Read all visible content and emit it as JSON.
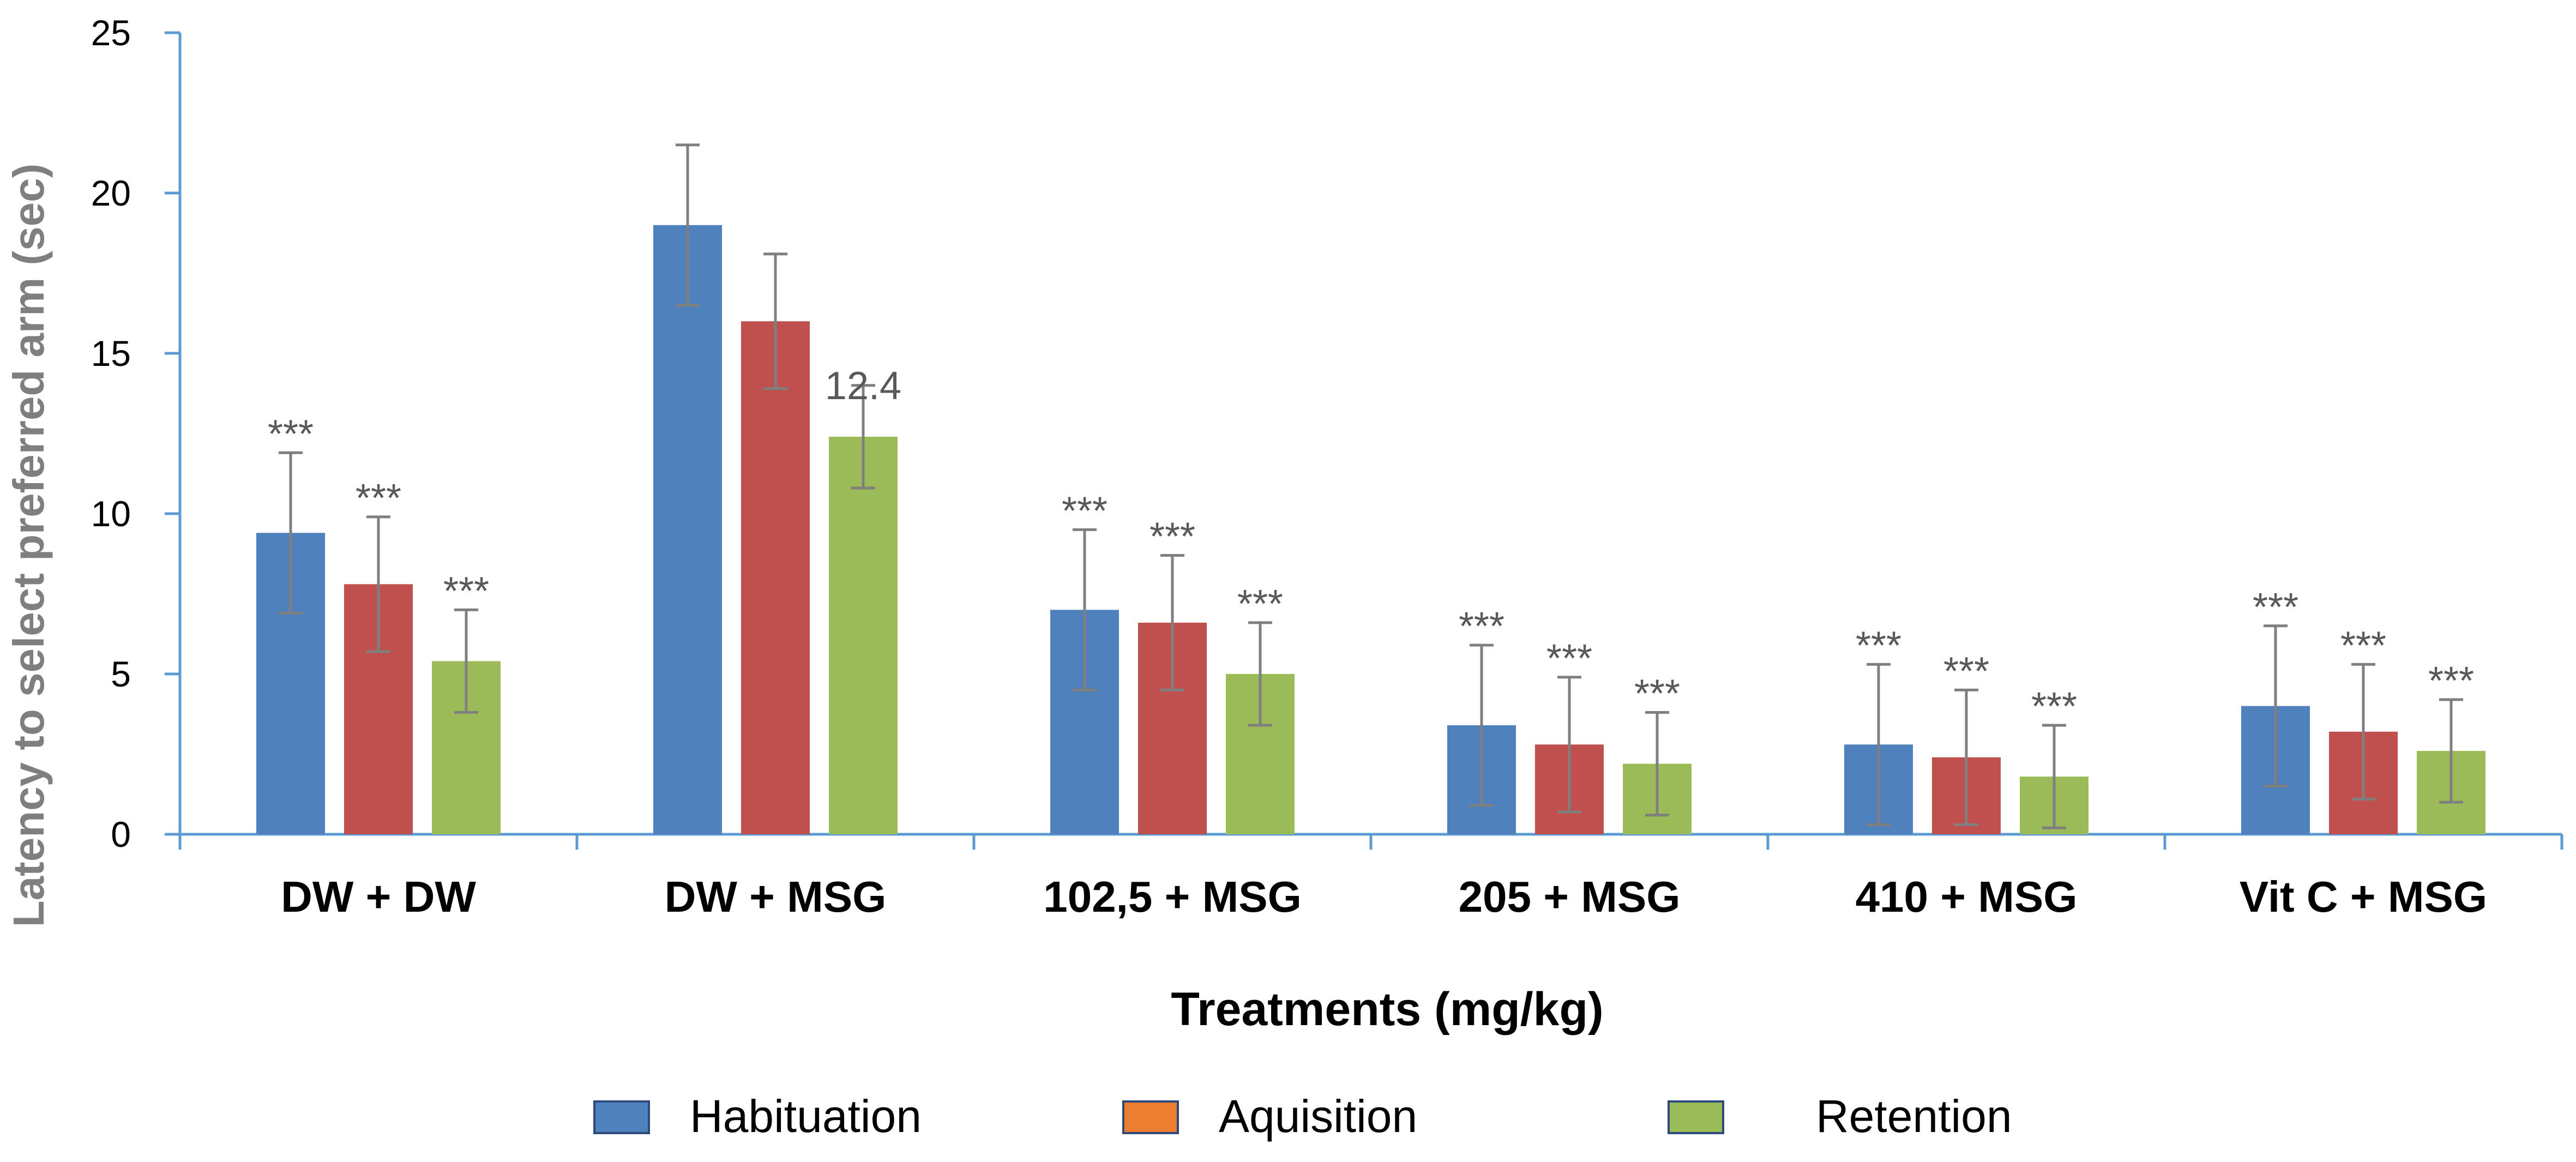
{
  "chart_data": {
    "type": "bar",
    "xlabel": "Treatments (mg/kg)",
    "ylabel": "Latency to select preferred arm  (sec)",
    "ylim": [
      0,
      25
    ],
    "yticks": [
      "0",
      "5",
      "10",
      "15",
      "20",
      "25"
    ],
    "categories": [
      "DW + DW",
      "DW + MSG",
      "102,5 + MSG",
      "205 + MSG",
      "410 + MSG",
      "Vit C + MSG"
    ],
    "series": [
      {
        "name": "Habituation",
        "color": "#4f81bd",
        "values": [
          9.4,
          19.0,
          7.0,
          3.4,
          2.8,
          4.0
        ],
        "errors": [
          2.5,
          2.5,
          2.5,
          2.5,
          2.5,
          2.5
        ],
        "annotations": [
          "***",
          "",
          "***",
          "***",
          "***",
          "***"
        ]
      },
      {
        "name": "Aquisition",
        "color": "#c0504d",
        "legend_color": "#ed7d31",
        "values": [
          7.8,
          16.0,
          6.6,
          2.8,
          2.4,
          3.2
        ],
        "errors": [
          2.1,
          2.1,
          2.1,
          2.1,
          2.1,
          2.1
        ],
        "annotations": [
          "***",
          "",
          "***",
          "***",
          "***",
          "***"
        ]
      },
      {
        "name": "Retention",
        "color": "#9bbb59",
        "values": [
          5.4,
          12.4,
          5.0,
          2.2,
          1.8,
          2.6
        ],
        "errors": [
          1.6,
          1.6,
          1.6,
          1.6,
          1.6,
          1.6
        ],
        "annotations": [
          "***",
          "12.4",
          "***",
          "***",
          "***",
          "***"
        ]
      }
    ],
    "grid": false,
    "legend": "bottom",
    "axis_color": "#5b9bd5"
  }
}
